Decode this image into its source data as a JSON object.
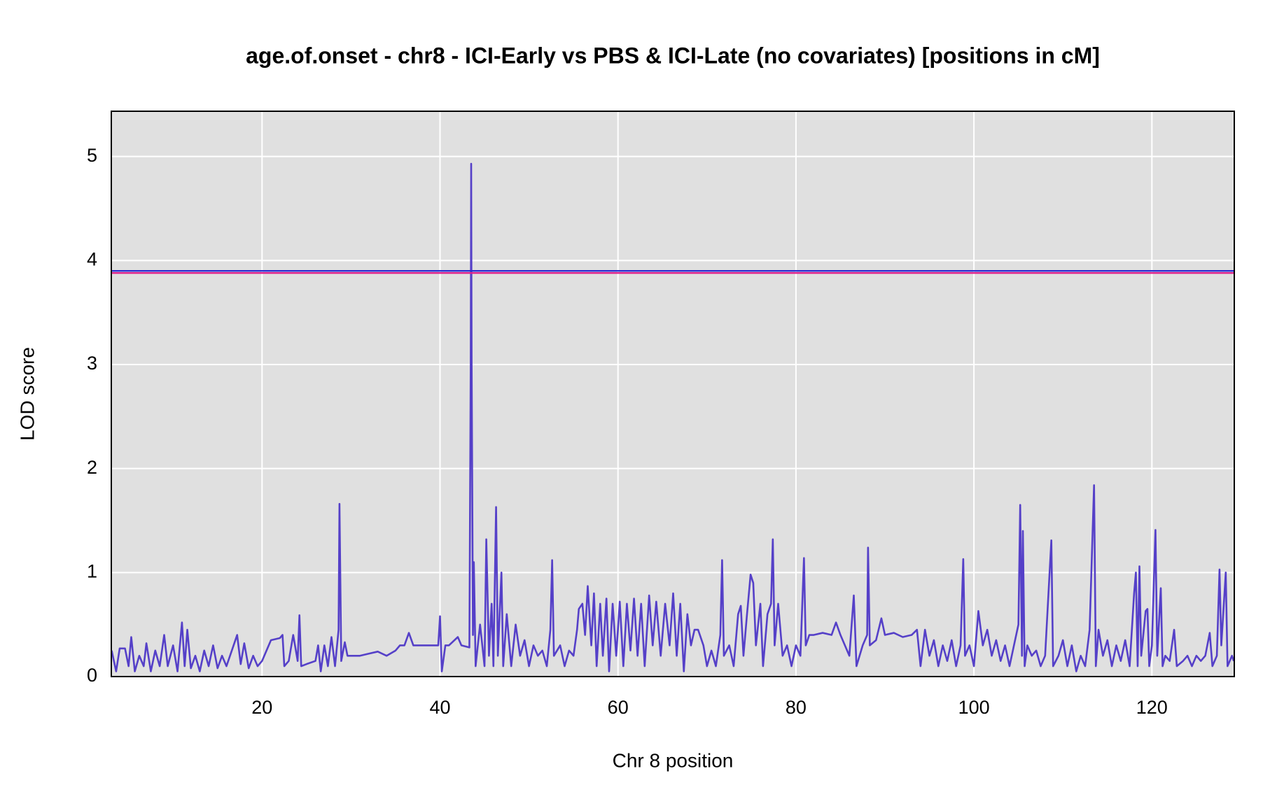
{
  "chart_data": {
    "type": "line",
    "title": "age.of.onset - chr8 - ICI-Early vs PBS & ICI-Late (no covariates) [positions in cM]",
    "x_label": "Chr 8 position",
    "y_label": "LOD score",
    "color": "#5540c8",
    "grid": true,
    "xlim": [
      3.06,
      129.26
    ],
    "ylim": [
      0,
      5.435
    ],
    "xticks": [
      20,
      40,
      60,
      80,
      100,
      120
    ],
    "yticks": [
      0,
      1,
      2,
      3,
      4,
      5
    ],
    "thresholds": [
      {
        "value": 3.9,
        "color": "#2a2ad0"
      },
      {
        "value": 3.88,
        "color": "#e0208a"
      }
    ],
    "x": [
      3.1,
      3.6,
      4,
      4.6,
      5,
      5.3,
      5.7,
      6.2,
      6.7,
      7,
      7.5,
      8,
      8.5,
      9,
      9.4,
      10,
      10.5,
      11,
      11.3,
      11.6,
      12,
      12.5,
      13,
      13.5,
      14,
      14.5,
      15,
      15.5,
      16,
      16.8,
      17.2,
      17.6,
      18,
      18.5,
      19,
      19.5,
      20,
      21,
      22,
      22.3,
      22.5,
      23,
      23.5,
      24,
      24.2,
      24.4,
      25,
      26,
      26.3,
      26.6,
      27,
      27.4,
      27.8,
      28.2,
      28.6,
      28.7,
      28.9,
      29.3,
      29.6,
      31,
      32,
      33,
      34,
      35,
      35.5,
      36,
      36.5,
      37,
      39,
      39.8,
      40,
      40.2,
      40.6,
      41,
      42,
      42.4,
      43.3,
      43.45,
      43.5,
      43.55,
      43.7,
      43.8,
      44,
      44.5,
      45,
      45.2,
      45.5,
      45.8,
      46,
      46.3,
      46.5,
      46.9,
      47.1,
      47.5,
      48,
      48.5,
      49,
      49.5,
      50,
      50.5,
      51,
      51.5,
      52,
      52.4,
      52.6,
      52.8,
      53.5,
      54,
      54.5,
      55,
      55.4,
      55.6,
      56,
      56.3,
      56.6,
      57,
      57.3,
      57.6,
      58,
      58.3,
      58.7,
      59,
      59.4,
      59.8,
      60.2,
      60.6,
      61,
      61.4,
      61.8,
      62.2,
      62.6,
      63,
      63.5,
      63.9,
      64.3,
      64.8,
      65.3,
      65.8,
      66.2,
      66.6,
      67,
      67.4,
      67.8,
      68.2,
      68.6,
      69,
      69.6,
      70,
      70.5,
      71,
      71.5,
      71.7,
      71.9,
      72.5,
      73,
      73.5,
      73.8,
      74.1,
      74.5,
      74.9,
      75.2,
      75.5,
      76,
      76.3,
      76.8,
      77.2,
      77.4,
      77.6,
      78,
      78.5,
      79,
      79.5,
      80,
      80.5,
      80.9,
      81.1,
      81.5,
      82,
      83,
      84,
      84.5,
      85,
      86,
      86.5,
      86.8,
      87.5,
      88,
      88.1,
      88.3,
      89,
      89.6,
      90,
      91,
      92,
      93,
      93.6,
      94,
      94.5,
      95,
      95.5,
      96,
      96.5,
      97,
      97.5,
      98,
      98.5,
      98.8,
      99,
      99.5,
      100,
      100.5,
      101,
      101.5,
      102,
      102.5,
      103,
      103.5,
      104,
      104.5,
      105,
      105.2,
      105.4,
      105.5,
      105.7,
      106,
      106.5,
      107,
      107.5,
      108,
      108.7,
      108.9,
      109.5,
      110,
      110.5,
      111,
      111.5,
      112,
      112.5,
      113,
      113.5,
      113.7,
      114,
      114.5,
      115,
      115.5,
      116,
      116.5,
      117,
      117.5,
      118,
      118.2,
      118.4,
      118.6,
      118.8,
      119.3,
      119.5,
      119.7,
      120,
      120.4,
      120.6,
      121,
      121.2,
      121.5,
      122,
      122.5,
      122.8,
      123.5,
      124,
      124.5,
      125,
      125.5,
      126,
      126.5,
      126.8,
      127.3,
      127.6,
      127.8,
      128.3,
      128.5,
      129,
      129.2
    ],
    "values": [
      0.25,
      0.05,
      0.27,
      0.27,
      0.1,
      0.38,
      0.05,
      0.2,
      0.1,
      0.32,
      0.05,
      0.25,
      0.1,
      0.4,
      0.1,
      0.3,
      0.05,
      0.52,
      0.1,
      0.45,
      0.08,
      0.2,
      0.05,
      0.25,
      0.1,
      0.3,
      0.08,
      0.2,
      0.1,
      0.3,
      0.4,
      0.12,
      0.32,
      0.08,
      0.2,
      0.1,
      0.15,
      0.35,
      0.37,
      0.4,
      0.1,
      0.15,
      0.4,
      0.15,
      0.59,
      0.1,
      0.12,
      0.15,
      0.3,
      0.05,
      0.3,
      0.1,
      0.38,
      0.1,
      0.45,
      1.66,
      0.15,
      0.33,
      0.2,
      0.2,
      0.22,
      0.24,
      0.2,
      0.25,
      0.3,
      0.3,
      0.42,
      0.3,
      0.3,
      0.3,
      0.58,
      0.05,
      0.3,
      0.3,
      0.38,
      0.3,
      0.28,
      3.0,
      4.93,
      3.05,
      0.4,
      1.1,
      0.1,
      0.5,
      0.1,
      1.32,
      0.2,
      0.7,
      0.1,
      1.63,
      0.2,
      1.0,
      0.1,
      0.6,
      0.1,
      0.5,
      0.2,
      0.35,
      0.1,
      0.3,
      0.2,
      0.25,
      0.1,
      0.45,
      1.12,
      0.2,
      0.3,
      0.1,
      0.25,
      0.2,
      0.45,
      0.65,
      0.7,
      0.4,
      0.87,
      0.3,
      0.8,
      0.1,
      0.7,
      0.2,
      0.75,
      0.05,
      0.7,
      0.2,
      0.72,
      0.1,
      0.7,
      0.25,
      0.75,
      0.2,
      0.7,
      0.1,
      0.78,
      0.3,
      0.72,
      0.2,
      0.7,
      0.3,
      0.8,
      0.2,
      0.7,
      0.05,
      0.6,
      0.3,
      0.45,
      0.45,
      0.3,
      0.1,
      0.25,
      0.1,
      0.4,
      1.12,
      0.2,
      0.3,
      0.1,
      0.6,
      0.68,
      0.2,
      0.6,
      0.98,
      0.9,
      0.3,
      0.7,
      0.1,
      0.6,
      0.7,
      1.32,
      0.3,
      0.7,
      0.2,
      0.3,
      0.1,
      0.3,
      0.2,
      1.14,
      0.3,
      0.4,
      0.4,
      0.42,
      0.4,
      0.52,
      0.4,
      0.2,
      0.78,
      0.1,
      0.3,
      0.4,
      1.24,
      0.3,
      0.35,
      0.56,
      0.4,
      0.42,
      0.38,
      0.4,
      0.45,
      0.1,
      0.45,
      0.2,
      0.35,
      0.1,
      0.3,
      0.15,
      0.35,
      0.1,
      0.3,
      1.13,
      0.2,
      0.3,
      0.1,
      0.63,
      0.3,
      0.45,
      0.2,
      0.35,
      0.15,
      0.3,
      0.1,
      0.3,
      0.5,
      1.65,
      0.2,
      1.4,
      0.1,
      0.3,
      0.2,
      0.25,
      0.1,
      0.2,
      1.31,
      0.1,
      0.2,
      0.35,
      0.1,
      0.3,
      0.05,
      0.2,
      0.1,
      0.45,
      1.84,
      0.1,
      0.45,
      0.2,
      0.35,
      0.1,
      0.3,
      0.15,
      0.35,
      0.1,
      0.8,
      1.0,
      0.1,
      1.06,
      0.2,
      0.63,
      0.65,
      0.1,
      0.3,
      1.41,
      0.2,
      0.85,
      0.1,
      0.2,
      0.15,
      0.45,
      0.1,
      0.15,
      0.2,
      0.1,
      0.2,
      0.15,
      0.2,
      0.42,
      0.1,
      0.2,
      1.03,
      0.3,
      1.0,
      0.1,
      0.2,
      0.15
    ]
  }
}
